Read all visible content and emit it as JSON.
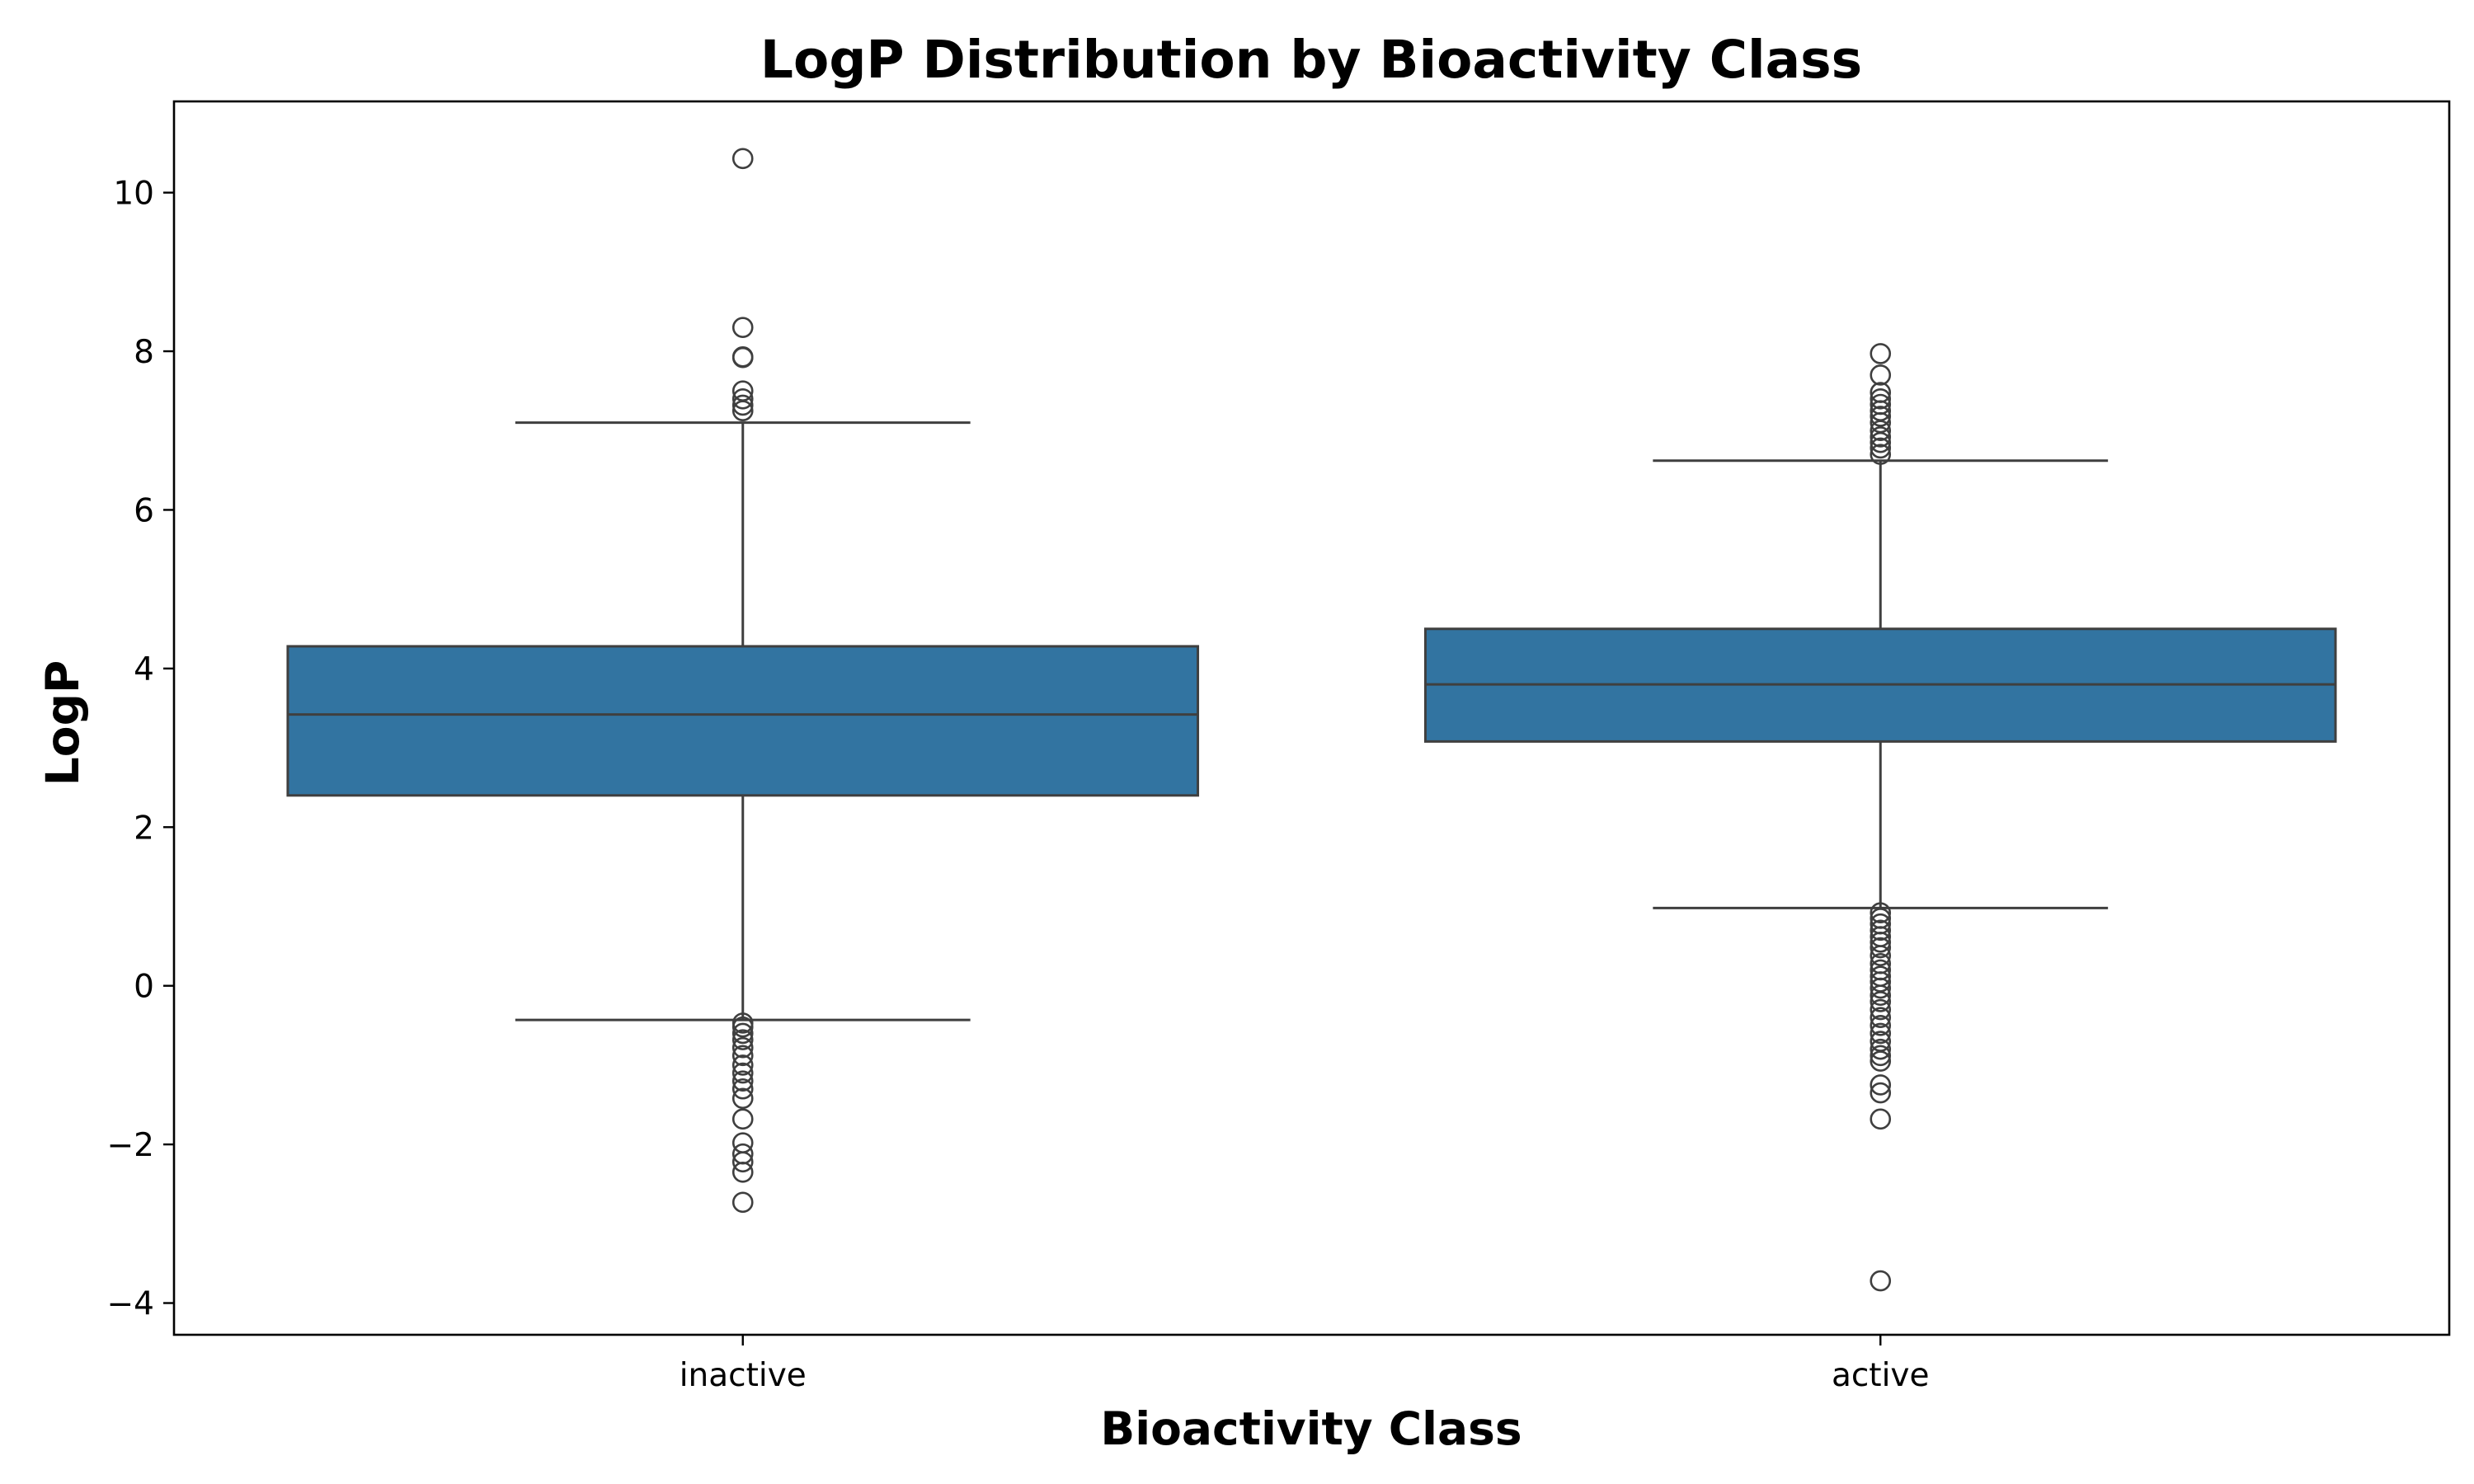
{
  "chart_data": {
    "type": "box",
    "title": "LogP Distribution by Bioactivity Class",
    "xlabel": "Bioactivity Class",
    "ylabel": "LogP",
    "ylim": [
      -4.4,
      11.15
    ],
    "yticks": [
      {
        "value": 10,
        "label": "10"
      },
      {
        "value": 8,
        "label": "8"
      },
      {
        "value": 6,
        "label": "6"
      },
      {
        "value": 4,
        "label": "4"
      },
      {
        "value": 2,
        "label": "2"
      },
      {
        "value": 0,
        "label": "0"
      },
      {
        "value": -2,
        "label": "−2"
      },
      {
        "value": -4,
        "label": "−4"
      }
    ],
    "grid": false,
    "colors": {
      "box_fill": "#3274a1",
      "line": "#3f3f3f",
      "axes": "#000000"
    },
    "categories": [
      "inactive",
      "active"
    ],
    "boxes": [
      {
        "category": "inactive",
        "whisker_low": -0.43,
        "q1": 2.4,
        "median": 3.42,
        "q3": 4.28,
        "whisker_high": 7.1,
        "outliers": [
          10.43,
          8.3,
          7.93,
          7.92,
          7.5,
          7.4,
          7.32,
          7.25,
          -0.47,
          -0.52,
          -0.6,
          -0.68,
          -0.78,
          -0.88,
          -1.0,
          -1.1,
          -1.2,
          -1.3,
          -1.42,
          -1.68,
          -1.98,
          -2.12,
          -2.22,
          -2.35,
          -2.73
        ]
      },
      {
        "category": "active",
        "whisker_low": 0.98,
        "q1": 3.08,
        "median": 3.8,
        "q3": 4.5,
        "whisker_high": 6.62,
        "outliers": [
          7.97,
          7.7,
          7.48,
          7.4,
          7.33,
          7.25,
          7.18,
          7.1,
          7.0,
          6.92,
          6.85,
          6.78,
          6.7,
          0.92,
          0.85,
          0.78,
          0.7,
          0.62,
          0.55,
          0.48,
          0.38,
          0.28,
          0.2,
          0.12,
          0.05,
          -0.03,
          -0.12,
          -0.2,
          -0.3,
          -0.4,
          -0.5,
          -0.6,
          -0.7,
          -0.8,
          -0.88,
          -0.95,
          -1.25,
          -1.35,
          -1.68,
          -3.72
        ]
      }
    ]
  }
}
